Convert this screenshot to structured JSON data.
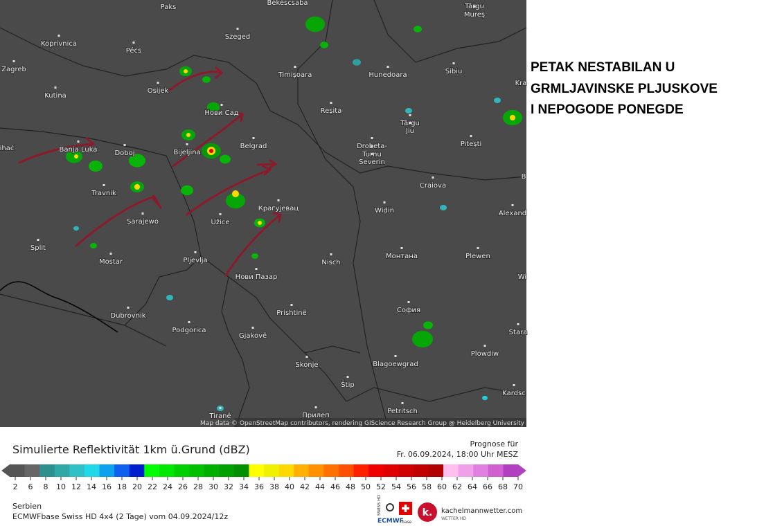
{
  "map": {
    "cities": [
      "Paks",
      "Békéscsaba",
      "Târgu",
      "Mureș",
      "Koprivnica",
      "Pécs",
      "Szeged",
      "Zagreb",
      "Timișoara",
      "Hunedoara",
      "Sibiu",
      "Kutina",
      "Osijek",
      "Нови Сад",
      "Reșita",
      "Târgu",
      "Jiu",
      "Pitești",
      "Banja Luka",
      "Doboj",
      "Bijeljina",
      "Belgrad",
      "Drobeta-",
      "Turnu",
      "Severin",
      "Craiova",
      "Travnik",
      "Sarajewo",
      "Užice",
      "Крагујевац",
      "Widin",
      "Alexand",
      "Split",
      "Mostar",
      "Pljevlja",
      "Нови Пазар",
      "Nisch",
      "Монтана",
      "Plewen",
      "Dubrovnik",
      "Podgorica",
      "Prishtinë",
      "София",
      "Gjakovë",
      "Stara",
      "Plowdiw",
      "Skonje",
      "Blagoewgrad",
      "Kardsc",
      "Štip",
      "Tiranë",
      "Прилеп",
      "Petritsch",
      "ihać",
      "Kra",
      "B",
      "Wi"
    ],
    "attribution": "Map data © OpenStreetMap contributors, rendering GIScience Research Group @ Heidelberg University"
  },
  "headline": [
    "PETAK NESTABILAN U",
    "GRMLJAVINSKE PLJUSKOVE",
    "I NEPOGODE PONEGDE"
  ],
  "legend": {
    "title": "Simulierte Reflektivität 1km ü.Grund (dBZ)",
    "forecast_label": "Prognose für",
    "forecast_time": "Fr. 06.09.2024, 18:00 Uhr MESZ",
    "ticks": [
      2,
      6,
      8,
      10,
      12,
      14,
      16,
      18,
      20,
      22,
      24,
      26,
      28,
      30,
      32,
      34,
      36,
      38,
      40,
      42,
      44,
      46,
      48,
      50,
      52,
      54,
      56,
      58,
      60,
      62,
      64,
      66,
      68,
      70
    ],
    "colors": [
      "#555555",
      "#666666",
      "#2f8f8f",
      "#30a8a8",
      "#30c0c8",
      "#20d8e8",
      "#10a0f0",
      "#1060f0",
      "#0020d0",
      "#00ff00",
      "#00e800",
      "#00d000",
      "#00c000",
      "#00b000",
      "#00a000",
      "#009000",
      "#ffff00",
      "#f0f000",
      "#ffd800",
      "#ffb000",
      "#ff9000",
      "#ff7000",
      "#ff5000",
      "#ff2000",
      "#f00000",
      "#e00000",
      "#d00000",
      "#c00000",
      "#b00000",
      "#ffc0f0",
      "#f0a0e8",
      "#e080e0",
      "#d060d0",
      "#b040c0"
    ]
  },
  "footer": {
    "region": "Serbien",
    "model": "ECMWFbase Swiss HD 4x4 (2 Tage) vom 04.09.2024/12z",
    "swiss": "SWISS HD",
    "ecmwf": "ECMWF",
    "base": "base",
    "brand": "kachelmannwetter.com",
    "brand_sub": "WETTER HD"
  }
}
